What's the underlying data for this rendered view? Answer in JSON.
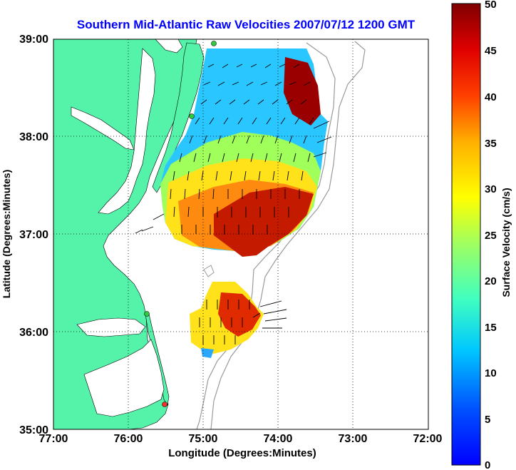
{
  "title": "Southern Mid-Atlantic Raw Velocities 2007/07/12 1200 GMT",
  "xlabel": "Longitude (Degrees:Minutes)",
  "ylabel": "Latitude (Degrees:Minutes)",
  "x_ticks": [
    "77:00",
    "76:00",
    "75:00",
    "74:00",
    "73:00",
    "72:00"
  ],
  "y_ticks": [
    "39:00",
    "38:00",
    "37:00",
    "36:00",
    "35:00"
  ],
  "colorbar": {
    "label": "Surface Velocity (cm/s)",
    "ticks": [
      "0",
      "5",
      "10",
      "15",
      "20",
      "25",
      "30",
      "35",
      "40",
      "45",
      "50"
    ]
  },
  "colors": {
    "land": "#55f2aa",
    "water": "#ffffff",
    "title": "#0000ff",
    "station": "#2ecc40",
    "station_red": "#ff3030"
  },
  "map_data": {
    "type": "velocity-field",
    "lon_range": [
      -77,
      -72
    ],
    "lat_range": [
      35,
      39
    ],
    "grid": true,
    "colormap": "jet",
    "vmin": 0,
    "vmax": 50
  }
}
